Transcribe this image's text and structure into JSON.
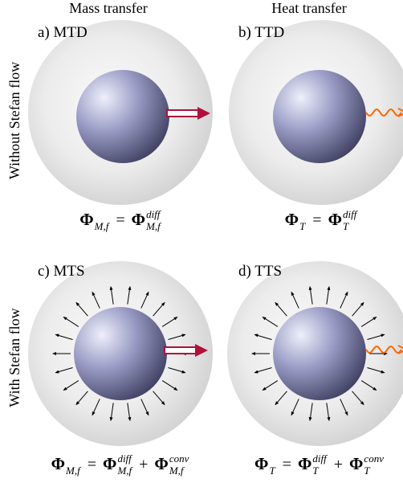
{
  "columns": [
    "Mass transfer",
    "Heat transfer"
  ],
  "rows": [
    "Without Stefan flow",
    "With Stefan flow"
  ],
  "panels": [
    {
      "label": "a) MTD",
      "formula": [
        {
          "base": "Φ",
          "sub": "M,f"
        },
        {
          "op": "="
        },
        {
          "base": "Φ",
          "sub": "M,f",
          "sup": "diff"
        }
      ]
    },
    {
      "label": "b) TTD",
      "formula": [
        {
          "base": "Φ",
          "sub": "T"
        },
        {
          "op": "="
        },
        {
          "base": "Φ",
          "sub": "T",
          "sup": "diff"
        }
      ]
    },
    {
      "label": "c) MTS",
      "formula": [
        {
          "base": "Φ",
          "sub": "M,f"
        },
        {
          "op": "="
        },
        {
          "base": "Φ",
          "sub": "M,f",
          "sup": "diff"
        },
        {
          "op": "+"
        },
        {
          "base": "Φ",
          "sub": "M,f",
          "sup": "conv"
        }
      ]
    },
    {
      "label": "d) TTS",
      "formula": [
        {
          "base": "Φ",
          "sub": "T"
        },
        {
          "op": "="
        },
        {
          "base": "Φ",
          "sub": "T",
          "sup": "diff"
        },
        {
          "op": "+"
        },
        {
          "base": "Φ",
          "sub": "T",
          "sup": "conv"
        }
      ]
    }
  ]
}
